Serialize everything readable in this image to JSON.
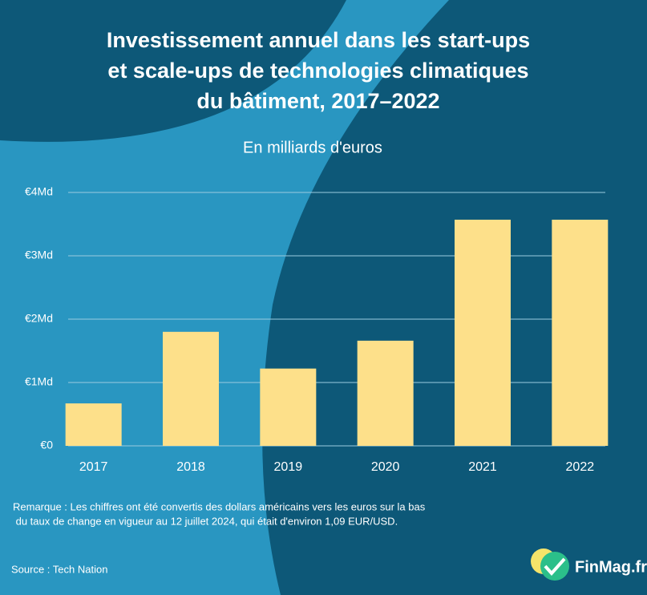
{
  "chart_data": {
    "type": "bar",
    "title": [
      "Investissement annuel dans les start-ups",
      "et scale-ups de technologies climatiques",
      "du bâtiment, 2017–2022"
    ],
    "subtitle": "En milliards d'euros",
    "categories": [
      "2017",
      "2018",
      "2019",
      "2020",
      "2021",
      "2022"
    ],
    "values": [
      0.67,
      1.8,
      1.22,
      1.66,
      3.57,
      3.57
    ],
    "color": "#fde08a",
    "ylim": [
      0,
      4
    ],
    "yticks": [
      {
        "value": 0,
        "label": "€0"
      },
      {
        "value": 1,
        "label": "€1Md"
      },
      {
        "value": 2,
        "label": "€2Md"
      },
      {
        "value": 3,
        "label": "€3Md"
      },
      {
        "value": 4,
        "label": "€4Md"
      }
    ],
    "grid": true,
    "note": [
      "Remarque : Les chiffres ont été convertis des dollars américains vers les euros sur la bas",
      " du taux de change en vigueur au 12 juillet 2024, qui était d'environ 1,09 EUR/USD."
    ],
    "source": "Source : Tech Nation",
    "logo": "FinMag.fr"
  }
}
